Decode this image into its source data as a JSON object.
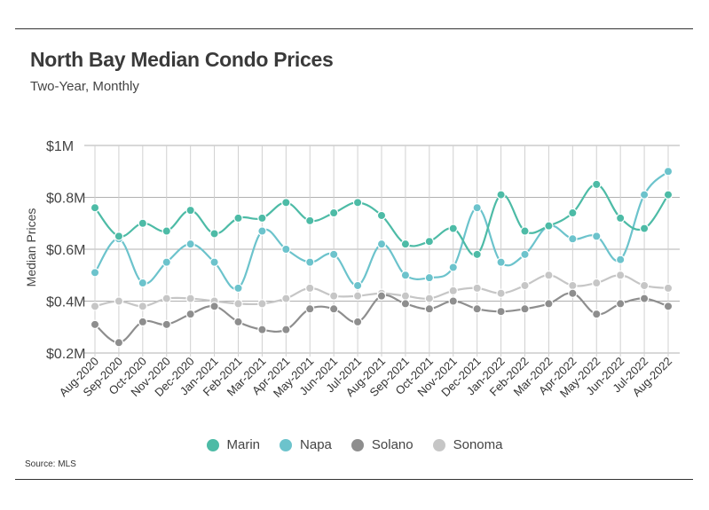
{
  "header": {
    "title": "North Bay Median Condo Prices",
    "subtitle": "Two-Year, Monthly"
  },
  "footer": {
    "source": "Source:  MLS"
  },
  "chart_data": {
    "type": "line",
    "title": "North Bay Median Condo Prices",
    "subtitle": "Two-Year, Monthly",
    "ylabel": "Median Prices",
    "xlabel": "",
    "ylim": [
      0.2,
      1.0
    ],
    "yticks": [
      {
        "value": 0.2,
        "label": "$0.2M"
      },
      {
        "value": 0.4,
        "label": "$0.4M"
      },
      {
        "value": 0.6,
        "label": "$0.6M"
      },
      {
        "value": 0.8,
        "label": "$0.8M"
      },
      {
        "value": 1.0,
        "label": "$1M"
      }
    ],
    "grid": true,
    "legend_position": "bottom",
    "categories": [
      "Aug-2020",
      "Sep-2020",
      "Oct-2020",
      "Nov-2020",
      "Dec-2020",
      "Jan-2021",
      "Feb-2021",
      "Mar-2021",
      "Apr-2021",
      "May-2021",
      "Jun-2021",
      "Jul-2021",
      "Aug-2021",
      "Sep-2021",
      "Oct-2021",
      "Nov-2021",
      "Dec-2021",
      "Jan-2022",
      "Feb-2022",
      "Mar-2022",
      "Apr-2022",
      "May-2022",
      "Jun-2022",
      "Jul-2022",
      "Aug-2022"
    ],
    "series": [
      {
        "name": "Marin",
        "color": "#4dbba6",
        "values": [
          0.76,
          0.65,
          0.7,
          0.67,
          0.75,
          0.66,
          0.72,
          0.72,
          0.78,
          0.71,
          0.74,
          0.78,
          0.73,
          0.62,
          0.63,
          0.68,
          0.58,
          0.81,
          0.67,
          0.69,
          0.74,
          0.85,
          0.72,
          0.68,
          0.81
        ]
      },
      {
        "name": "Napa",
        "color": "#6cc3cc",
        "values": [
          0.51,
          0.64,
          0.47,
          0.55,
          0.62,
          0.55,
          0.45,
          0.67,
          0.6,
          0.55,
          0.58,
          0.46,
          0.62,
          0.5,
          0.49,
          0.53,
          0.76,
          0.55,
          0.58,
          0.69,
          0.64,
          0.65,
          0.56,
          0.81,
          0.9
        ]
      },
      {
        "name": "Solano",
        "color": "#8e8e8e",
        "values": [
          0.31,
          0.24,
          0.32,
          0.31,
          0.35,
          0.38,
          0.32,
          0.29,
          0.29,
          0.37,
          0.37,
          0.32,
          0.42,
          0.39,
          0.37,
          0.4,
          0.37,
          0.36,
          0.37,
          0.39,
          0.43,
          0.35,
          0.39,
          0.41,
          0.38
        ]
      },
      {
        "name": "Sonoma",
        "color": "#c6c6c6",
        "values": [
          0.38,
          0.4,
          0.38,
          0.41,
          0.41,
          0.4,
          0.39,
          0.39,
          0.41,
          0.45,
          0.42,
          0.42,
          0.43,
          0.42,
          0.41,
          0.44,
          0.45,
          0.43,
          0.46,
          0.5,
          0.46,
          0.47,
          0.5,
          0.46,
          0.45
        ]
      }
    ]
  }
}
